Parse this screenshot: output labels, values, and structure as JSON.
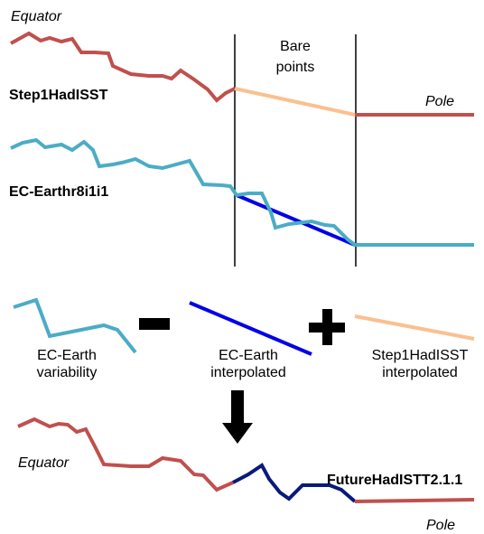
{
  "top": {
    "equator": "Equator",
    "bare_points": [
      "Bare",
      "points"
    ],
    "step1": "Step1HadISST",
    "pole": "Pole",
    "ecearth": "EC-Earthr8i1i1"
  },
  "components": {
    "variability": [
      "EC-Earth",
      "variability"
    ],
    "ec_interpolated": [
      "EC-Earth",
      "interpolated"
    ],
    "step1_interpolated": [
      "Step1HadISST",
      "interpolated"
    ]
  },
  "result": {
    "equator": "Equator",
    "name": "FutureHadISTT2.1.1",
    "pole": "Pole"
  }
}
